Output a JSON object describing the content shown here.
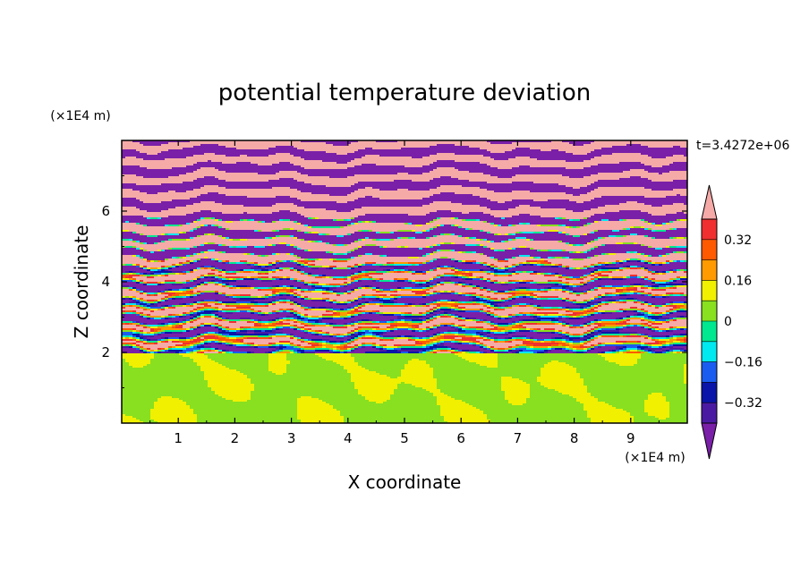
{
  "chart_data": {
    "type": "heatmap",
    "title": "potential temperature deviation",
    "xlabel": "X coordinate",
    "ylabel": "Z coordinate",
    "x_unit": "(×1E4 m)",
    "y_unit": "(×1E4 m)",
    "time_label": "t=3.4272e+06",
    "xlim": [
      0,
      10
    ],
    "ylim": [
      0,
      8
    ],
    "x_ticks": [
      1,
      2,
      3,
      4,
      5,
      6,
      7,
      8,
      9
    ],
    "y_ticks": [
      2,
      4,
      6
    ],
    "colorbar": {
      "levels": [
        -0.4,
        -0.32,
        -0.24,
        -0.16,
        -0.08,
        0,
        0.08,
        0.16,
        0.24,
        0.32,
        0.4
      ],
      "labeled_ticks": [
        "0.32",
        "0.16",
        "0",
        "−0.16",
        "−0.32"
      ],
      "labeled_values": [
        0.32,
        0.16,
        0,
        -0.16,
        -0.32
      ],
      "colors_low_to_high": [
        "#7a1fa8",
        "#4b1aa3",
        "#0a14a8",
        "#1a5cf0",
        "#00e8f0",
        "#00e890",
        "#88e020",
        "#f0f000",
        "#ff9a00",
        "#ff5a00",
        "#f03030",
        "#f5aaa8"
      ],
      "extend": "both"
    },
    "regions": [
      {
        "z_range": [
          0,
          2
        ],
        "description_values": [
          0,
          0.08
        ]
      },
      {
        "z_range": [
          2,
          8
        ],
        "description_values": [
          -0.4,
          0.4
        ]
      }
    ]
  }
}
